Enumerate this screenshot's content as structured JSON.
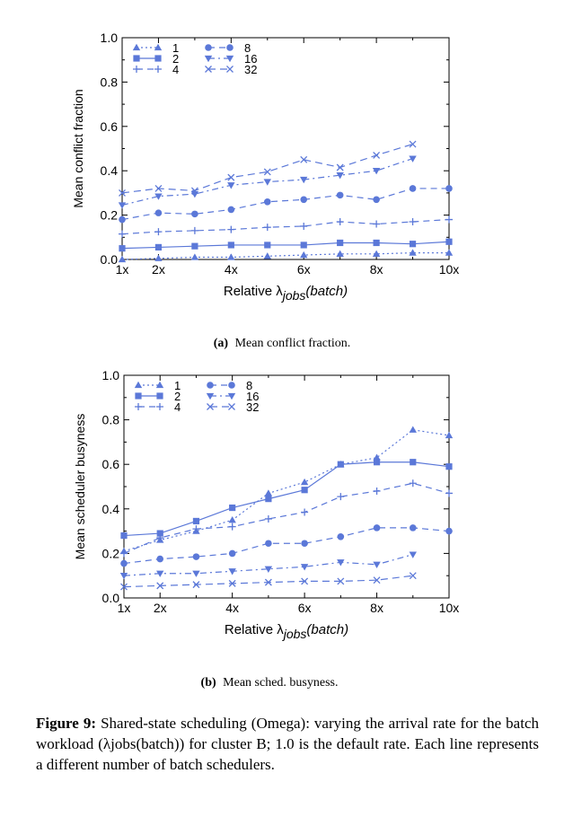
{
  "chart_data": [
    {
      "type": "line",
      "caption_label": "(a)",
      "caption_text": "Mean conflict fraction.",
      "xlabel": "Relative λ",
      "xlabel_sub": "jobs",
      "xlabel_suffix": "(batch)",
      "ylabel": "Mean conflict fraction",
      "xlim": [
        1,
        10
      ],
      "ylim": [
        0,
        1.0
      ],
      "x_ticks": [
        1,
        2,
        4,
        6,
        8,
        10
      ],
      "x_tick_labels": [
        "1x",
        "2x",
        "4x",
        "6x",
        "8x",
        "10x"
      ],
      "y_ticks": [
        0,
        0.2,
        0.4,
        0.6,
        0.8,
        1.0
      ],
      "y_tick_labels": [
        "0.0",
        "0.2",
        "0.4",
        "0.6",
        "0.8",
        "1.0"
      ],
      "legend_position": "top-left",
      "series": [
        {
          "name": "1",
          "marker": "triangle",
          "dash": "2,3",
          "x": [
            1,
            2,
            3,
            4,
            5,
            6,
            7,
            8,
            9,
            10
          ],
          "values": [
            0.0,
            0.005,
            0.01,
            0.01,
            0.015,
            0.02,
            0.025,
            0.025,
            0.03,
            0.03
          ]
        },
        {
          "name": "2",
          "marker": "square",
          "dash": "",
          "x": [
            1,
            2,
            3,
            4,
            5,
            6,
            7,
            8,
            9,
            10
          ],
          "values": [
            0.05,
            0.055,
            0.06,
            0.065,
            0.065,
            0.065,
            0.075,
            0.075,
            0.07,
            0.08
          ]
        },
        {
          "name": "4",
          "marker": "plus",
          "dash": "7,5",
          "x": [
            1,
            2,
            3,
            4,
            5,
            6,
            7,
            8,
            9,
            10
          ],
          "values": [
            0.115,
            0.125,
            0.13,
            0.135,
            0.145,
            0.15,
            0.17,
            0.16,
            0.17,
            0.18
          ]
        },
        {
          "name": "8",
          "marker": "circle",
          "dash": "7,5",
          "x": [
            1,
            2,
            3,
            4,
            5,
            6,
            7,
            8,
            9,
            10
          ],
          "values": [
            0.18,
            0.21,
            0.205,
            0.225,
            0.26,
            0.27,
            0.29,
            0.27,
            0.32,
            0.32
          ]
        },
        {
          "name": "16",
          "marker": "triangle-down",
          "dash": "7,4,2,4",
          "x": [
            1,
            2,
            3,
            4,
            5,
            6,
            7,
            8,
            9
          ],
          "values": [
            0.245,
            0.285,
            0.295,
            0.335,
            0.35,
            0.36,
            0.38,
            0.4,
            0.455
          ]
        },
        {
          "name": "32",
          "marker": "x",
          "dash": "8,5",
          "x": [
            1,
            2,
            3,
            4,
            5,
            6,
            7,
            8,
            9
          ],
          "values": [
            0.3,
            0.32,
            0.31,
            0.37,
            0.395,
            0.45,
            0.415,
            0.47,
            0.52
          ]
        }
      ]
    },
    {
      "type": "line",
      "caption_label": "(b)",
      "caption_text": "Mean sched. busyness.",
      "xlabel": "Relative λ",
      "xlabel_sub": "jobs",
      "xlabel_suffix": "(batch)",
      "ylabel": "Mean scheduler busyness",
      "xlim": [
        1,
        10
      ],
      "ylim": [
        0,
        1.0
      ],
      "x_ticks": [
        1,
        2,
        4,
        6,
        8,
        10
      ],
      "x_tick_labels": [
        "1x",
        "2x",
        "4x",
        "6x",
        "8x",
        "10x"
      ],
      "y_ticks": [
        0,
        0.2,
        0.4,
        0.6,
        0.8,
        1.0
      ],
      "y_tick_labels": [
        "0.0",
        "0.2",
        "0.4",
        "0.6",
        "0.8",
        "1.0"
      ],
      "legend_position": "top-left",
      "series": [
        {
          "name": "1",
          "marker": "triangle",
          "dash": "2,3",
          "x": [
            1,
            2,
            3,
            4,
            5,
            6,
            7,
            8,
            9,
            10
          ],
          "values": [
            0.21,
            0.26,
            0.3,
            0.35,
            0.47,
            0.52,
            0.6,
            0.63,
            0.755,
            0.73
          ]
        },
        {
          "name": "2",
          "marker": "square",
          "dash": "",
          "x": [
            1,
            2,
            3,
            4,
            5,
            6,
            7,
            8,
            9,
            10
          ],
          "values": [
            0.28,
            0.29,
            0.345,
            0.405,
            0.445,
            0.485,
            0.6,
            0.61,
            0.61,
            0.59
          ]
        },
        {
          "name": "4",
          "marker": "plus",
          "dash": "7,5",
          "x": [
            1,
            2,
            3,
            4,
            5,
            6,
            7,
            8,
            9,
            10
          ],
          "values": [
            0.2,
            0.27,
            0.31,
            0.32,
            0.355,
            0.385,
            0.455,
            0.48,
            0.515,
            0.47
          ]
        },
        {
          "name": "8",
          "marker": "circle",
          "dash": "7,5",
          "x": [
            1,
            2,
            3,
            4,
            5,
            6,
            7,
            8,
            9,
            10
          ],
          "values": [
            0.155,
            0.175,
            0.185,
            0.2,
            0.245,
            0.245,
            0.275,
            0.315,
            0.315,
            0.3
          ]
        },
        {
          "name": "16",
          "marker": "triangle-down",
          "dash": "7,4,2,4",
          "x": [
            1,
            2,
            3,
            4,
            5,
            6,
            7,
            8,
            9
          ],
          "values": [
            0.1,
            0.11,
            0.11,
            0.12,
            0.13,
            0.14,
            0.16,
            0.15,
            0.195
          ]
        },
        {
          "name": "32",
          "marker": "x",
          "dash": "8,5",
          "x": [
            1,
            2,
            3,
            4,
            5,
            6,
            7,
            8,
            9
          ],
          "values": [
            0.05,
            0.055,
            0.06,
            0.065,
            0.07,
            0.075,
            0.075,
            0.08,
            0.1
          ]
        }
      ]
    }
  ],
  "colors": {
    "series": "#5b78d8"
  },
  "figure_caption": {
    "label": "Figure 9:",
    "text": "Shared-state scheduling (Omega): varying the arrival rate for the batch workload (λjobs(batch)) for cluster B; 1.0 is the default rate. Each line represents a different number of batch schedulers."
  }
}
